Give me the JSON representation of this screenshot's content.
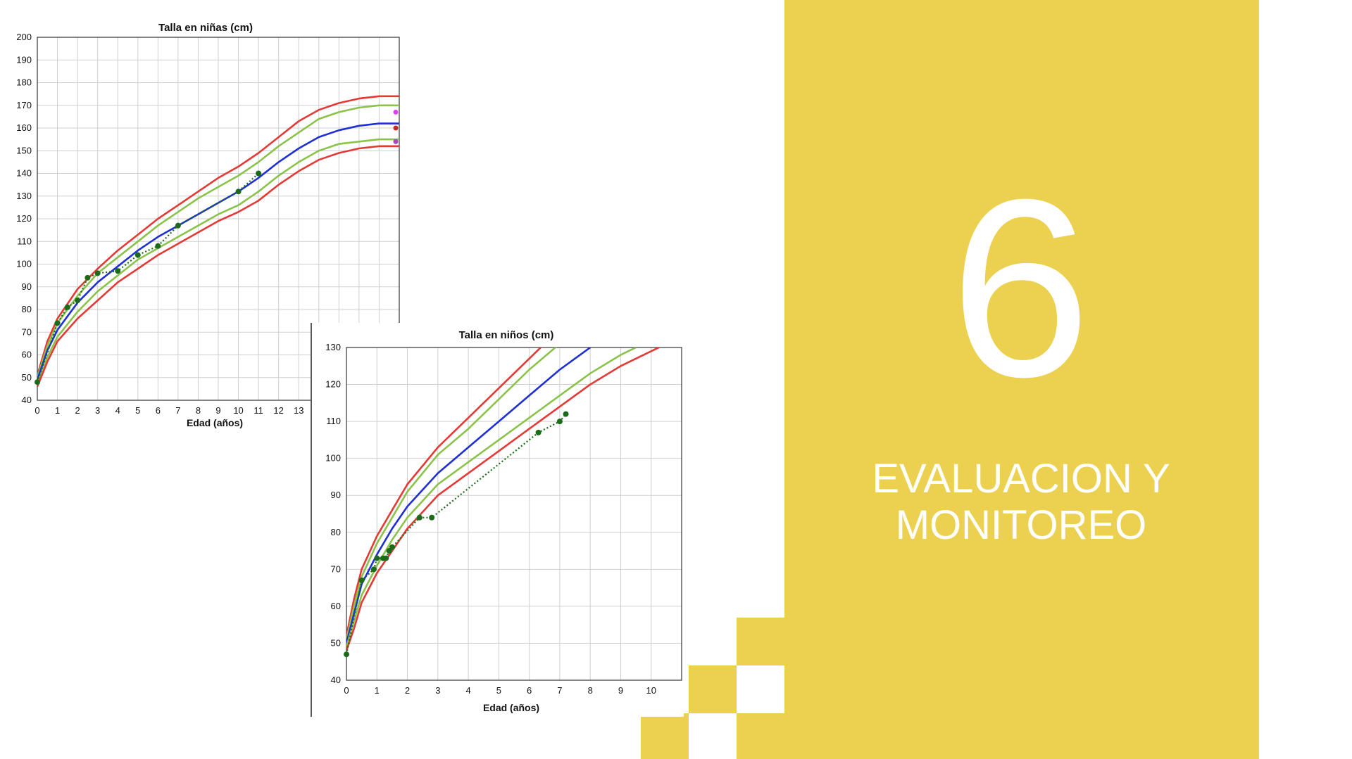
{
  "slide": {
    "number": "6",
    "title_line1": "EVALUACION Y",
    "title_line2": "MONITOREO"
  },
  "colors": {
    "accent_yellow": "#ecd04f",
    "background": "#ffffff",
    "p3_p97": "#e53935",
    "p15_p85": "#8bc34a",
    "p50": "#1e2fd6",
    "patient": "#1b6b1b"
  },
  "chart_data": [
    {
      "type": "line",
      "title": "Talla en niñas (cm)",
      "xlabel": "Edad (años)",
      "ylabel": "",
      "xlim": [
        0,
        18
      ],
      "ylim": [
        40,
        200
      ],
      "x_ticks": [
        0,
        1,
        2,
        3,
        4,
        5,
        6,
        7,
        8,
        9,
        10,
        11,
        12,
        13
      ],
      "y_ticks": [
        40,
        50,
        60,
        70,
        80,
        90,
        100,
        110,
        120,
        130,
        140,
        150,
        160,
        170,
        180,
        190,
        200
      ],
      "grid": true,
      "series": [
        {
          "role": "upper-red",
          "color": "#e53935",
          "x": [
            0,
            0.5,
            1,
            2,
            3,
            4,
            5,
            6,
            7,
            8,
            9,
            10,
            11,
            12,
            13,
            14,
            15,
            16,
            17,
            18
          ],
          "y": [
            51,
            66,
            76,
            89,
            98,
            106,
            113,
            120,
            126,
            132,
            138,
            143,
            149,
            156,
            163,
            168,
            171,
            173,
            174,
            174
          ]
        },
        {
          "role": "upper-green",
          "color": "#8bc34a",
          "x": [
            0,
            0.5,
            1,
            2,
            3,
            4,
            5,
            6,
            7,
            8,
            9,
            10,
            11,
            12,
            13,
            14,
            15,
            16,
            17,
            18
          ],
          "y": [
            50,
            64,
            74,
            86,
            96,
            103,
            110,
            117,
            123,
            129,
            134,
            139,
            145,
            152,
            158,
            164,
            167,
            169,
            170,
            170
          ]
        },
        {
          "role": "median-blue",
          "color": "#1e2fd6",
          "x": [
            0,
            0.5,
            1,
            2,
            3,
            4,
            5,
            6,
            7,
            8,
            9,
            10,
            11,
            12,
            13,
            14,
            15,
            16,
            17,
            18
          ],
          "y": [
            49,
            62,
            71,
            83,
            92,
            99,
            106,
            112,
            117,
            122,
            127,
            132,
            138,
            145,
            151,
            156,
            159,
            161,
            162,
            162
          ]
        },
        {
          "role": "lower-green",
          "color": "#8bc34a",
          "x": [
            0,
            0.5,
            1,
            2,
            3,
            4,
            5,
            6,
            7,
            8,
            9,
            10,
            11,
            12,
            13,
            14,
            15,
            16,
            17,
            18
          ],
          "y": [
            47,
            59,
            68,
            79,
            88,
            95,
            102,
            107,
            112,
            117,
            122,
            126,
            132,
            139,
            145,
            150,
            153,
            154,
            155,
            155
          ]
        },
        {
          "role": "lower-red",
          "color": "#e53935",
          "x": [
            0,
            0.5,
            1,
            2,
            3,
            4,
            5,
            6,
            7,
            8,
            9,
            10,
            11,
            12,
            13,
            14,
            15,
            16,
            17,
            18
          ],
          "y": [
            46,
            57,
            66,
            76,
            84,
            92,
            98,
            104,
            109,
            114,
            119,
            123,
            128,
            135,
            141,
            146,
            149,
            151,
            152,
            152
          ]
        },
        {
          "role": "patient",
          "color": "#1b6b1b",
          "dotted": true,
          "x": [
            0,
            1,
            1.5,
            2,
            2.5,
            3,
            4,
            5,
            6,
            7,
            10,
            11
          ],
          "y": [
            48,
            74,
            81,
            84,
            94,
            96,
            97,
            104,
            108,
            117,
            132,
            140
          ]
        }
      ],
      "markers_right_edge": [
        {
          "color": "#e040fb",
          "y": 167
        },
        {
          "color": "#c62828",
          "y": 160
        },
        {
          "color": "#ab47bc",
          "y": 154
        }
      ]
    },
    {
      "type": "line",
      "title": "Talla en niños (cm)",
      "xlabel": "Edad (años)",
      "ylabel": "",
      "xlim": [
        0,
        11
      ],
      "ylim": [
        40,
        130
      ],
      "x_ticks": [
        0,
        1,
        2,
        3,
        4,
        5,
        6,
        7,
        8,
        9,
        10
      ],
      "y_ticks": [
        40,
        50,
        60,
        70,
        80,
        90,
        100,
        110,
        120,
        130
      ],
      "grid": true,
      "series": [
        {
          "role": "upper-red",
          "color": "#e53935",
          "x": [
            0,
            0.25,
            0.5,
            1,
            1.5,
            2,
            3,
            4,
            5,
            6,
            6.5
          ],
          "y": [
            52,
            62,
            70,
            79,
            86,
            93,
            103,
            111,
            119,
            127,
            131
          ]
        },
        {
          "role": "upper-green",
          "color": "#8bc34a",
          "x": [
            0,
            0.25,
            0.5,
            1,
            1.5,
            2,
            3,
            4,
            5,
            6,
            7
          ],
          "y": [
            51,
            60,
            68,
            77,
            84,
            91,
            101,
            108,
            116,
            124,
            131
          ]
        },
        {
          "role": "median-blue",
          "color": "#1e2fd6",
          "x": [
            0,
            0.25,
            0.5,
            1,
            1.5,
            2,
            3,
            4,
            5,
            6,
            7,
            8
          ],
          "y": [
            50,
            58,
            66,
            74,
            81,
            87,
            96,
            103,
            110,
            117,
            124,
            130
          ]
        },
        {
          "role": "lower-green",
          "color": "#8bc34a",
          "x": [
            0,
            0.25,
            0.5,
            1,
            1.5,
            2,
            3,
            4,
            5,
            6,
            7,
            8,
            9,
            9.5
          ],
          "y": [
            49,
            56,
            63,
            71,
            78,
            84,
            93,
            99,
            105,
            111,
            117,
            123,
            128,
            130
          ]
        },
        {
          "role": "lower-red",
          "color": "#e53935",
          "x": [
            0,
            0.25,
            0.5,
            1,
            1.5,
            2,
            3,
            4,
            5,
            6,
            7,
            8,
            9,
            10,
            10.5
          ],
          "y": [
            48,
            54,
            61,
            69,
            75,
            81,
            90,
            96,
            102,
            108,
            114,
            120,
            125,
            129,
            131
          ]
        },
        {
          "role": "patient",
          "color": "#1b6b1b",
          "dotted": true,
          "x": [
            0,
            0.5,
            0.9,
            1,
            1.2,
            1.3,
            1.4,
            1.5,
            2.4,
            2.8,
            6.3,
            7.0,
            7.2
          ],
          "y": [
            47,
            67,
            70,
            73,
            73,
            73,
            75,
            76,
            84,
            84,
            107,
            110,
            112
          ]
        }
      ]
    }
  ]
}
